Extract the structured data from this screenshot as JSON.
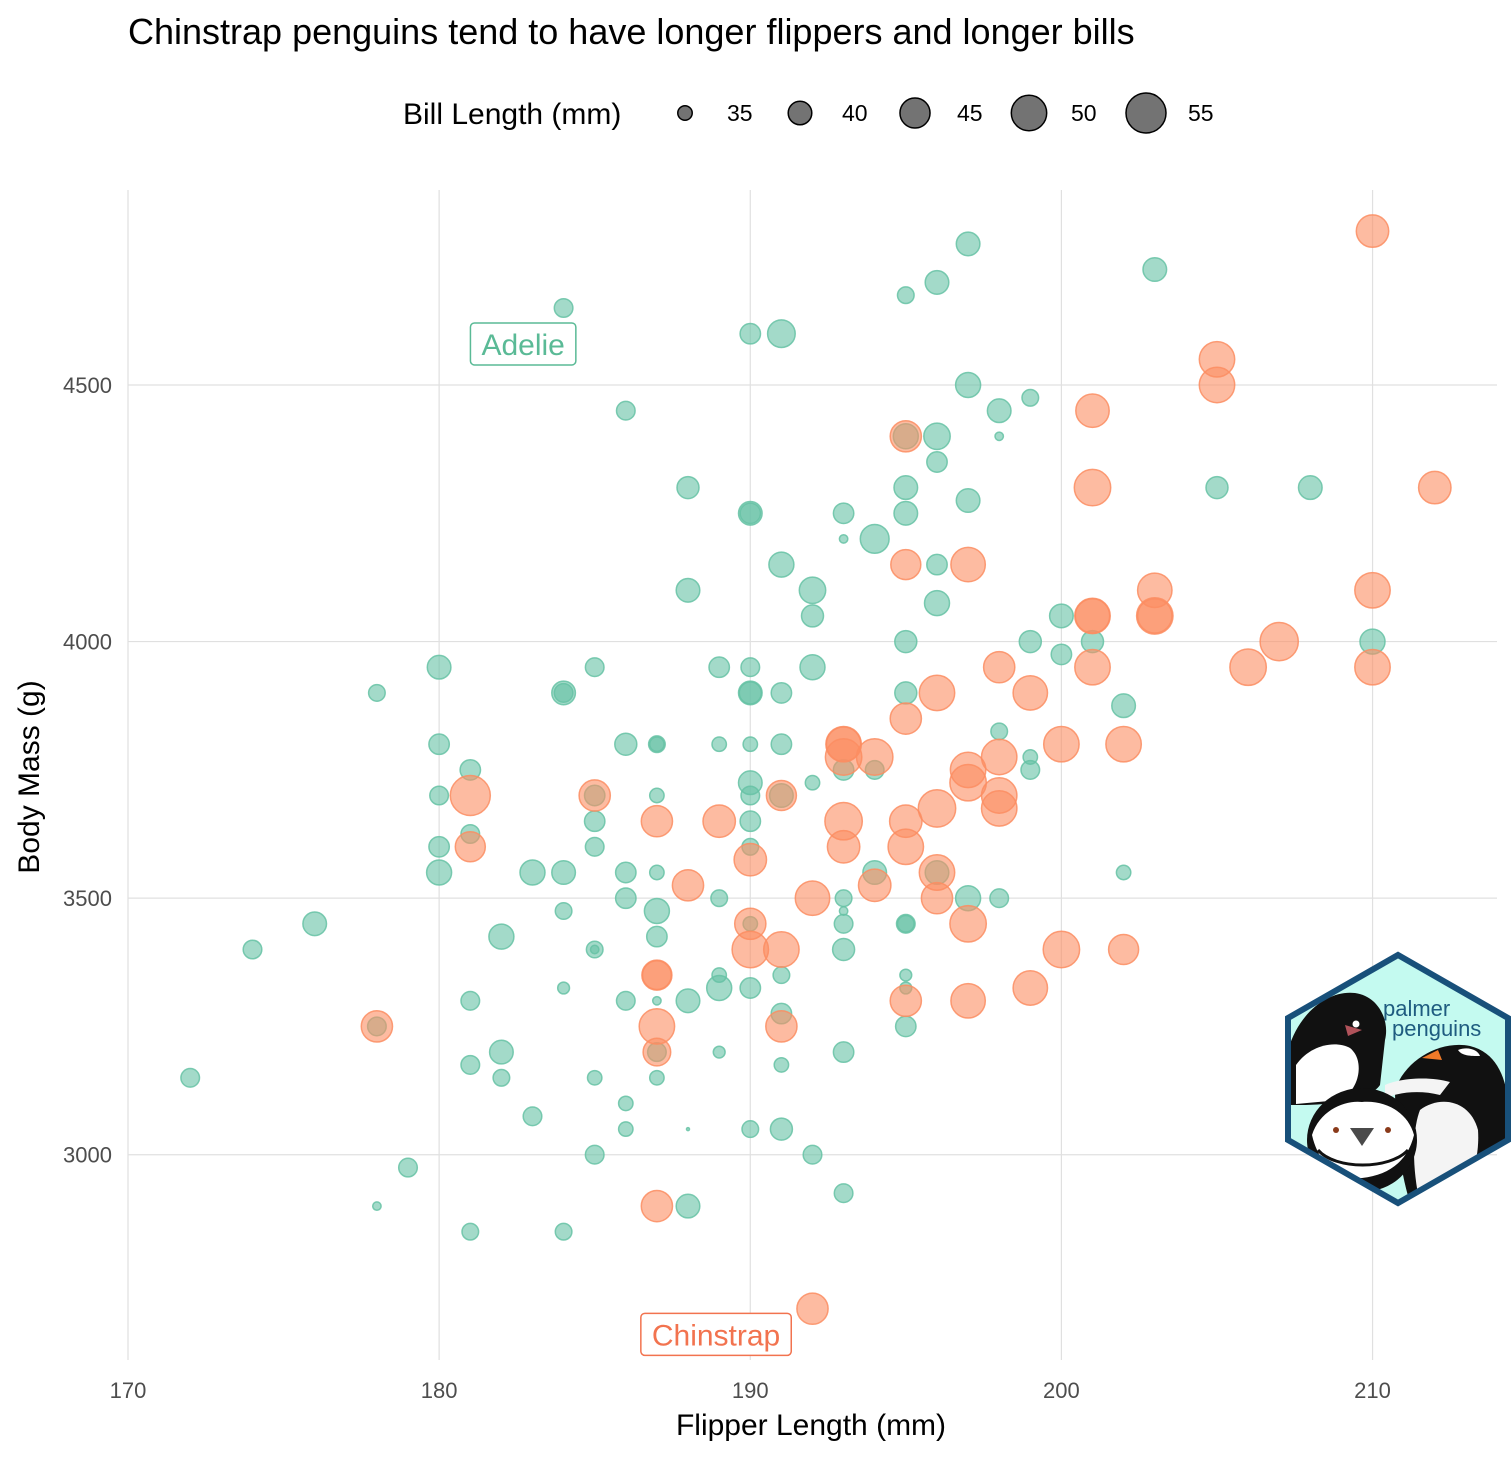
{
  "chart_data": {
    "type": "scatter",
    "title": "Chinstrap penguins tend to have longer flippers and longer bills",
    "xlabel": "Flipper Length (mm)",
    "ylabel": "Body Mass (g)",
    "xlim": [
      170,
      214
    ],
    "ylim": [
      2600,
      4880
    ],
    "x_ticks": [
      170,
      180,
      190,
      200,
      210
    ],
    "y_ticks": [
      3000,
      3500,
      4000,
      4500
    ],
    "grid": true,
    "size_legend": {
      "title": "Bill Length (mm)",
      "placement": "top",
      "levels": [
        35,
        40,
        45,
        50,
        55
      ],
      "labels": [
        "35",
        "40",
        "45",
        "50",
        "55"
      ],
      "color": "#000000"
    },
    "annotations": [
      {
        "text": "Adelie",
        "x": 182.7,
        "y": 4580,
        "color": "#5aba96"
      },
      {
        "text": "Chinstrap",
        "x": 188.9,
        "y": 2650,
        "color": "#f2734f"
      }
    ],
    "logo": {
      "text_line1": "palmer",
      "text_line2": "penguins"
    },
    "series": [
      {
        "name": "Adelie",
        "color": "#66c2a5",
        "points": [
          [
            197,
            4775,
            40
          ],
          [
            203,
            4725,
            40
          ],
          [
            196,
            4700,
            40
          ],
          [
            195,
            4675,
            36
          ],
          [
            184,
            4650,
            37
          ],
          [
            190,
            4600,
            38
          ],
          [
            191,
            4600,
            43
          ],
          [
            197,
            4500,
            41
          ],
          [
            199,
            4475,
            36
          ],
          [
            186,
            4450,
            37
          ],
          [
            198,
            4450,
            40
          ],
          [
            196,
            4400,
            42
          ],
          [
            195,
            4400,
            41
          ],
          [
            198,
            4400,
            33
          ],
          [
            196,
            4350,
            38
          ],
          [
            188,
            4300,
            39
          ],
          [
            195,
            4300,
            40
          ],
          [
            205,
            4300,
            39
          ],
          [
            208,
            4300,
            40
          ],
          [
            197,
            4275,
            40
          ],
          [
            190,
            4250,
            40
          ],
          [
            190,
            4250,
            38
          ],
          [
            193,
            4250,
            38
          ],
          [
            195,
            4250,
            40
          ],
          [
            194,
            4200,
            44
          ],
          [
            193,
            4200,
            33
          ],
          [
            191,
            4150,
            41
          ],
          [
            196,
            4150,
            38
          ],
          [
            192,
            4100,
            42
          ],
          [
            188,
            4100,
            40
          ],
          [
            192,
            4050,
            39
          ],
          [
            200,
            4050,
            40
          ],
          [
            196,
            4075,
            41
          ],
          [
            201,
            4000,
            39
          ],
          [
            199,
            4000,
            39
          ],
          [
            195,
            4000,
            39
          ],
          [
            210,
            4000,
            41
          ],
          [
            200,
            3975,
            38
          ],
          [
            180,
            3950,
            40
          ],
          [
            185,
            3950,
            37
          ],
          [
            189,
            3950,
            38
          ],
          [
            190,
            3950,
            37
          ],
          [
            192,
            3950,
            41
          ],
          [
            178,
            3900,
            36
          ],
          [
            184,
            3900,
            40
          ],
          [
            184,
            3900,
            37
          ],
          [
            190,
            3900,
            40
          ],
          [
            190,
            3900,
            39
          ],
          [
            191,
            3900,
            38
          ],
          [
            195,
            3900,
            39
          ],
          [
            202,
            3875,
            40
          ],
          [
            198,
            3825,
            36
          ],
          [
            180,
            3800,
            38
          ],
          [
            186,
            3800,
            39
          ],
          [
            187,
            3800,
            36
          ],
          [
            187,
            3800,
            35
          ],
          [
            189,
            3800,
            35
          ],
          [
            190,
            3800,
            35
          ],
          [
            191,
            3800,
            38
          ],
          [
            199,
            3775,
            35
          ],
          [
            181,
            3750,
            38
          ],
          [
            193,
            3750,
            38
          ],
          [
            194,
            3750,
            37
          ],
          [
            199,
            3750,
            37
          ],
          [
            192,
            3725,
            35
          ],
          [
            190,
            3725,
            40
          ],
          [
            180,
            3700,
            37
          ],
          [
            185,
            3700,
            38
          ],
          [
            187,
            3700,
            35
          ],
          [
            190,
            3700,
            37
          ],
          [
            191,
            3700,
            40
          ],
          [
            185,
            3650,
            38
          ],
          [
            190,
            3650,
            38
          ],
          [
            181,
            3625,
            37
          ],
          [
            190,
            3600,
            36
          ],
          [
            180,
            3600,
            38
          ],
          [
            185,
            3600,
            37
          ],
          [
            180,
            3550,
            41
          ],
          [
            183,
            3550,
            41
          ],
          [
            184,
            3550,
            40
          ],
          [
            186,
            3550,
            38
          ],
          [
            187,
            3550,
            35
          ],
          [
            194,
            3550,
            40
          ],
          [
            196,
            3550,
            40
          ],
          [
            202,
            3550,
            35
          ],
          [
            186,
            3500,
            38
          ],
          [
            189,
            3500,
            36
          ],
          [
            193,
            3500,
            36
          ],
          [
            197,
            3500,
            41
          ],
          [
            198,
            3500,
            37
          ],
          [
            184,
            3475,
            36
          ],
          [
            187,
            3475,
            41
          ],
          [
            193,
            3475,
            33
          ],
          [
            176,
            3450,
            40
          ],
          [
            190,
            3450,
            35
          ],
          [
            193,
            3450,
            37
          ],
          [
            195,
            3450,
            37
          ],
          [
            195,
            3450,
            36
          ],
          [
            182,
            3425,
            41
          ],
          [
            187,
            3425,
            38
          ],
          [
            174,
            3400,
            37
          ],
          [
            185,
            3400,
            36
          ],
          [
            185,
            3400,
            33
          ],
          [
            193,
            3400,
            39
          ],
          [
            189,
            3350,
            35
          ],
          [
            191,
            3350,
            36
          ],
          [
            195,
            3350,
            34
          ],
          [
            184,
            3325,
            34
          ],
          [
            189,
            3325,
            41
          ],
          [
            190,
            3325,
            38
          ],
          [
            195,
            3325,
            34
          ],
          [
            181,
            3300,
            37
          ],
          [
            186,
            3300,
            37
          ],
          [
            187,
            3300,
            33
          ],
          [
            188,
            3300,
            40
          ],
          [
            191,
            3275,
            38
          ],
          [
            178,
            3250,
            37
          ],
          [
            195,
            3250,
            38
          ],
          [
            182,
            3200,
            40
          ],
          [
            187,
            3200,
            37
          ],
          [
            189,
            3200,
            34
          ],
          [
            193,
            3200,
            38
          ],
          [
            181,
            3175,
            37
          ],
          [
            191,
            3175,
            35
          ],
          [
            172,
            3150,
            37
          ],
          [
            182,
            3150,
            36
          ],
          [
            185,
            3150,
            35
          ],
          [
            187,
            3150,
            35
          ],
          [
            186,
            3100,
            35
          ],
          [
            183,
            3075,
            37
          ],
          [
            186,
            3050,
            35
          ],
          [
            188,
            3050,
            32
          ],
          [
            190,
            3050,
            36
          ],
          [
            191,
            3050,
            39
          ],
          [
            185,
            3000,
            37
          ],
          [
            192,
            3000,
            37
          ],
          [
            179,
            2975,
            37
          ],
          [
            193,
            2925,
            37
          ],
          [
            178,
            2900,
            33
          ],
          [
            188,
            2900,
            40
          ],
          [
            181,
            2850,
            36
          ],
          [
            184,
            2850,
            36
          ]
        ]
      },
      {
        "name": "Chinstrap",
        "color": "#fc8d62",
        "points": [
          [
            210,
            4800,
            47
          ],
          [
            205,
            4550,
            50
          ],
          [
            205,
            4500,
            50
          ],
          [
            201,
            4450,
            48
          ],
          [
            195,
            4400,
            46
          ],
          [
            201,
            4300,
            51
          ],
          [
            212,
            4300,
            47
          ],
          [
            195,
            4150,
            45
          ],
          [
            197,
            4150,
            49
          ],
          [
            203,
            4100,
            49
          ],
          [
            210,
            4100,
            50
          ],
          [
            201,
            4050,
            50
          ],
          [
            201,
            4050,
            49
          ],
          [
            203,
            4050,
            51
          ],
          [
            203,
            4050,
            49
          ],
          [
            207,
            4000,
            53
          ],
          [
            206,
            3950,
            51
          ],
          [
            210,
            3950,
            50
          ],
          [
            198,
            3950,
            46
          ],
          [
            201,
            3950,
            50
          ],
          [
            196,
            3900,
            50
          ],
          [
            199,
            3900,
            49
          ],
          [
            193,
            3800,
            49
          ],
          [
            193,
            3800,
            50
          ],
          [
            195,
            3850,
            46
          ],
          [
            193,
            3775,
            51
          ],
          [
            194,
            3775,
            51
          ],
          [
            200,
            3800,
            50
          ],
          [
            202,
            3800,
            50
          ],
          [
            198,
            3775,
            50
          ],
          [
            197,
            3750,
            50
          ],
          [
            197,
            3725,
            51
          ],
          [
            181,
            3700,
            55
          ],
          [
            185,
            3700,
            46
          ],
          [
            191,
            3700,
            45
          ],
          [
            198,
            3700,
            50
          ],
          [
            198,
            3675,
            50
          ],
          [
            196,
            3675,
            52
          ],
          [
            187,
            3650,
            46
          ],
          [
            189,
            3650,
            47
          ],
          [
            193,
            3650,
            52
          ],
          [
            195,
            3650,
            47
          ],
          [
            181,
            3600,
            45
          ],
          [
            193,
            3600,
            47
          ],
          [
            195,
            3600,
            50
          ],
          [
            190,
            3575,
            47
          ],
          [
            196,
            3550,
            50
          ],
          [
            188,
            3525,
            46
          ],
          [
            194,
            3525,
            47
          ],
          [
            192,
            3500,
            49
          ],
          [
            196,
            3500,
            46
          ],
          [
            190,
            3450,
            46
          ],
          [
            197,
            3450,
            51
          ],
          [
            190,
            3400,
            51
          ],
          [
            191,
            3400,
            50
          ],
          [
            200,
            3400,
            51
          ],
          [
            202,
            3400,
            45
          ],
          [
            187,
            3350,
            45
          ],
          [
            187,
            3350,
            44
          ],
          [
            199,
            3325,
            49
          ],
          [
            195,
            3300,
            46
          ],
          [
            197,
            3300,
            49
          ],
          [
            178,
            3250,
            46
          ],
          [
            187,
            3250,
            50
          ],
          [
            191,
            3250,
            46
          ],
          [
            187,
            3200,
            43
          ],
          [
            187,
            2900,
            46
          ],
          [
            192,
            2700,
            46
          ]
        ]
      }
    ]
  }
}
